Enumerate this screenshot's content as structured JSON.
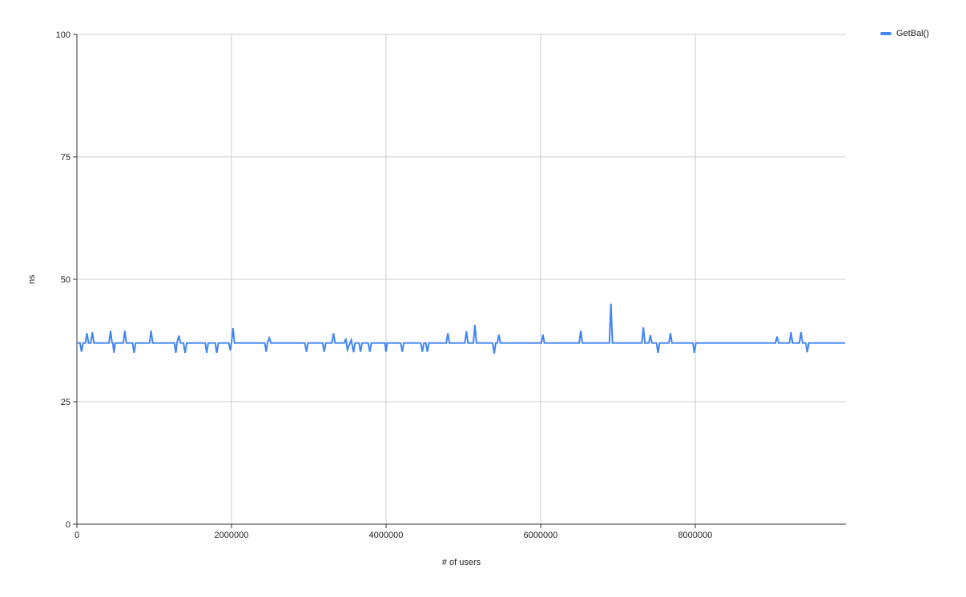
{
  "page": {
    "background": "#ffffff"
  },
  "style": {
    "series_color": "#4285f4",
    "gridline_color": "#cccccc",
    "axis_color": "#333333",
    "text_color": "#222222"
  },
  "chart": {
    "legend": {
      "items": [
        {
          "label": "GetBal()",
          "color": "#4285f4"
        }
      ]
    },
    "y_axis": {
      "title": "ns"
    },
    "x_axis": {
      "title": "# of users"
    }
  },
  "chart_data": {
    "type": "line",
    "title": "",
    "xlabel": "# of users",
    "ylabel": "ns",
    "xlim": [
      0,
      9950000
    ],
    "ylim": [
      0,
      100
    ],
    "grid": true,
    "legend_position": "top-right",
    "x_ticks": {
      "values": [
        0,
        2000000,
        4000000,
        6000000,
        8000000
      ],
      "labels": [
        "0",
        "2000000",
        "4000000",
        "6000000",
        "8000000"
      ]
    },
    "y_ticks": {
      "values": [
        0,
        25,
        50,
        75,
        100
      ],
      "labels": [
        "0",
        "25",
        "50",
        "75",
        "100"
      ]
    },
    "series": [
      {
        "name": "GetBal()",
        "color": "#4285f4",
        "baseline_ns": 37,
        "points": [
          [
            0,
            37
          ],
          [
            40000,
            37
          ],
          [
            60000,
            35.2
          ],
          [
            80000,
            37
          ],
          [
            110000,
            37
          ],
          [
            130000,
            39
          ],
          [
            150000,
            37
          ],
          [
            180000,
            37
          ],
          [
            200000,
            39.2
          ],
          [
            220000,
            37
          ],
          [
            415000,
            37
          ],
          [
            435000,
            39.5
          ],
          [
            455000,
            37
          ],
          [
            465000,
            37
          ],
          [
            480000,
            35
          ],
          [
            495000,
            37
          ],
          [
            600000,
            37
          ],
          [
            620000,
            39.5
          ],
          [
            640000,
            37
          ],
          [
            720000,
            37
          ],
          [
            740000,
            35
          ],
          [
            760000,
            37
          ],
          [
            940000,
            37
          ],
          [
            960000,
            39.5
          ],
          [
            980000,
            37
          ],
          [
            1260000,
            37
          ],
          [
            1280000,
            35
          ],
          [
            1295000,
            37
          ],
          [
            1320000,
            38.5
          ],
          [
            1340000,
            37
          ],
          [
            1380000,
            37
          ],
          [
            1400000,
            35
          ],
          [
            1420000,
            37
          ],
          [
            1660000,
            37
          ],
          [
            1680000,
            35
          ],
          [
            1700000,
            37
          ],
          [
            1790000,
            37
          ],
          [
            1810000,
            35
          ],
          [
            1830000,
            37
          ],
          [
            1965000,
            37
          ],
          [
            1985000,
            35.5
          ],
          [
            2000000,
            37
          ],
          [
            2020000,
            40
          ],
          [
            2040000,
            37
          ],
          [
            2430000,
            37
          ],
          [
            2450000,
            35.2
          ],
          [
            2465000,
            37
          ],
          [
            2490000,
            38
          ],
          [
            2510000,
            37
          ],
          [
            2950000,
            37
          ],
          [
            2970000,
            35.2
          ],
          [
            2990000,
            37
          ],
          [
            3180000,
            37
          ],
          [
            3200000,
            35.2
          ],
          [
            3220000,
            37
          ],
          [
            3300000,
            37
          ],
          [
            3320000,
            39
          ],
          [
            3340000,
            37
          ],
          [
            3460000,
            37
          ],
          [
            3480000,
            37.9
          ],
          [
            3500000,
            35.6
          ],
          [
            3550000,
            37.6
          ],
          [
            3580000,
            35.1
          ],
          [
            3600000,
            37
          ],
          [
            3650000,
            37
          ],
          [
            3670000,
            35.2
          ],
          [
            3690000,
            37
          ],
          [
            3770000,
            37
          ],
          [
            3790000,
            35.2
          ],
          [
            3810000,
            37
          ],
          [
            3985000,
            37
          ],
          [
            4000000,
            35.2
          ],
          [
            4015000,
            37
          ],
          [
            4190000,
            37
          ],
          [
            4210000,
            35.2
          ],
          [
            4230000,
            37
          ],
          [
            4450000,
            37
          ],
          [
            4470000,
            35.2
          ],
          [
            4490000,
            37
          ],
          [
            4515000,
            37
          ],
          [
            4535000,
            35.2
          ],
          [
            4555000,
            37
          ],
          [
            4780000,
            37
          ],
          [
            4800000,
            39
          ],
          [
            4820000,
            37
          ],
          [
            5020000,
            37
          ],
          [
            5040000,
            39.4
          ],
          [
            5060000,
            37
          ],
          [
            5130000,
            37
          ],
          [
            5150000,
            40.7
          ],
          [
            5170000,
            37
          ],
          [
            5380000,
            37
          ],
          [
            5400000,
            34.8
          ],
          [
            5420000,
            37
          ],
          [
            5440000,
            37
          ],
          [
            5460000,
            38.7
          ],
          [
            5480000,
            37
          ],
          [
            6010000,
            37
          ],
          [
            6030000,
            38.7
          ],
          [
            6050000,
            37
          ],
          [
            6500000,
            37
          ],
          [
            6520000,
            39.5
          ],
          [
            6540000,
            37
          ],
          [
            6890000,
            37
          ],
          [
            6910000,
            45
          ],
          [
            6930000,
            37
          ],
          [
            7310000,
            37
          ],
          [
            7330000,
            40.2
          ],
          [
            7350000,
            37
          ],
          [
            7400000,
            37
          ],
          [
            7420000,
            38.6
          ],
          [
            7440000,
            37
          ],
          [
            7500000,
            37
          ],
          [
            7520000,
            35
          ],
          [
            7540000,
            37
          ],
          [
            7660000,
            37
          ],
          [
            7680000,
            39
          ],
          [
            7700000,
            37
          ],
          [
            7970000,
            37
          ],
          [
            7990000,
            35
          ],
          [
            8010000,
            37
          ],
          [
            9040000,
            37
          ],
          [
            9060000,
            38.3
          ],
          [
            9080000,
            37
          ],
          [
            9220000,
            37
          ],
          [
            9240000,
            39.2
          ],
          [
            9260000,
            37
          ],
          [
            9350000,
            37
          ],
          [
            9370000,
            39.2
          ],
          [
            9390000,
            37
          ],
          [
            9430000,
            37
          ],
          [
            9450000,
            35.1
          ],
          [
            9470000,
            37
          ],
          [
            9940000,
            37
          ]
        ]
      }
    ]
  }
}
